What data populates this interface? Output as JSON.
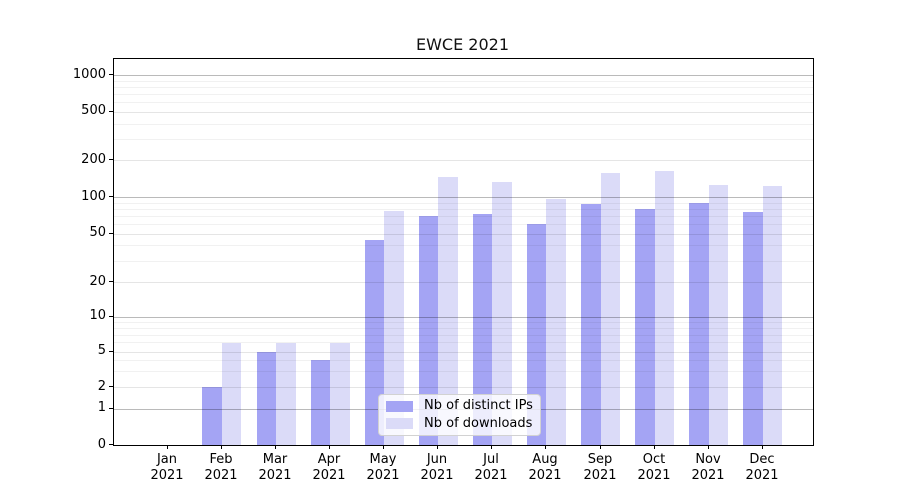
{
  "chart_data": {
    "type": "bar",
    "title": "EWCE 2021",
    "x": {
      "categories": [
        "Jan",
        "Feb",
        "Mar",
        "Apr",
        "May",
        "Jun",
        "Jul",
        "Aug",
        "Sep",
        "Oct",
        "Nov",
        "Dec"
      ],
      "year": "2021"
    },
    "series": [
      {
        "name": "Nb of distinct IPs",
        "color": "#a4a4f4",
        "values": [
          0,
          2,
          5,
          4,
          44,
          70,
          72,
          60,
          87,
          80,
          90,
          75
        ]
      },
      {
        "name": "Nb of downloads",
        "color": "#dbdbf8",
        "values": [
          0,
          6,
          6,
          6,
          77,
          145,
          133,
          96,
          156,
          163,
          126,
          123
        ]
      }
    ],
    "yscale": "symlog",
    "ylim": [
      0,
      1400
    ],
    "y_ticks": [
      1000,
      500,
      200,
      100,
      50,
      20,
      10,
      5,
      2,
      1,
      0
    ],
    "y_minor_ticks": [
      3,
      4,
      6,
      7,
      8,
      9,
      30,
      40,
      60,
      70,
      80,
      90,
      300,
      400,
      600,
      700,
      800,
      900
    ],
    "grid": true,
    "legend_position": "lower-center",
    "xlabel": "",
    "ylabel": ""
  }
}
